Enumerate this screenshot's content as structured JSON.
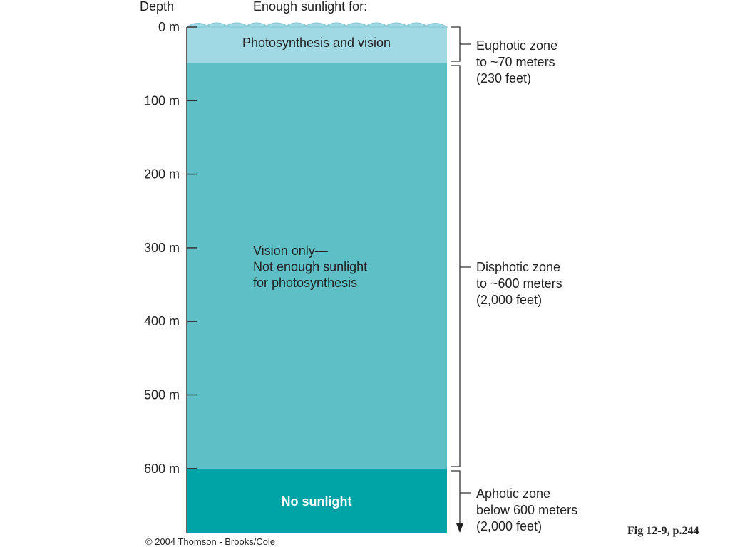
{
  "header": {
    "depth": "Depth",
    "sunlight": "Enough sunlight for:"
  },
  "depth_labels": [
    "0 m",
    "100 m",
    "200 m",
    "300 m",
    "400 m",
    "500 m",
    "600 m"
  ],
  "layers": [
    {
      "lines": [
        "Photosynthesis and vision"
      ]
    },
    {
      "lines": [
        "Vision only—",
        "Not enough sunlight",
        "for photosynthesis"
      ]
    },
    {
      "lines": [
        "No sunlight"
      ]
    }
  ],
  "zones": [
    {
      "lines": [
        "Euphotic zone",
        "to ~70 meters",
        "(230 feet)"
      ]
    },
    {
      "lines": [
        "Disphotic zone",
        "to ~600 meters",
        "(2,000 feet)"
      ]
    },
    {
      "lines": [
        "Aphotic zone",
        "below 600 meters",
        "(2,000 feet)"
      ]
    }
  ],
  "credit": "© 2004 Thomson - Brooks/Cole",
  "figure": "Fig 12-9, p.244"
}
